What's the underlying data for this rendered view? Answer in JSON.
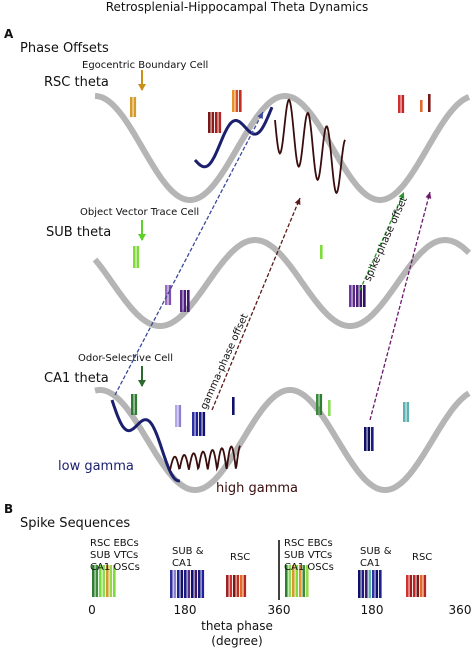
{
  "title": "Retrosplenial-Hippocampal Theta Dynamics",
  "panel_a": {
    "letter": "A",
    "heading": "Phase Offsets",
    "rsc": {
      "label": "RSC theta",
      "cell": "Egocentric Boundary Cell"
    },
    "sub": {
      "label": "SUB theta",
      "cell": "Object Vector Trace Cell"
    },
    "ca1": {
      "label": "CA1 theta",
      "cell": "Odor-Selective Cell"
    },
    "low_gamma": "low gamma",
    "high_gamma": "high gamma",
    "gamma_offset": "gamma-phase offset",
    "spike_offset": "spike-phase offset"
  },
  "panel_b": {
    "letter": "B",
    "heading": "Spike Sequences",
    "group1": [
      "RSC EBCs",
      "SUB VTCs",
      "CA1 OSCs"
    ],
    "group2": [
      "RSC EBCs",
      "SUB VTCs",
      "CA1 OSCs"
    ],
    "sub_ca1_1": [
      "SUB &",
      "CA1"
    ],
    "sub_ca1_2": [
      "SUB &",
      "CA1"
    ],
    "rsc_1": "RSC",
    "rsc_2": "RSC",
    "ticks": [
      "0",
      "180",
      "360",
      "180",
      "360"
    ],
    "axis_label": [
      "theta phase",
      "(degree)"
    ]
  }
}
